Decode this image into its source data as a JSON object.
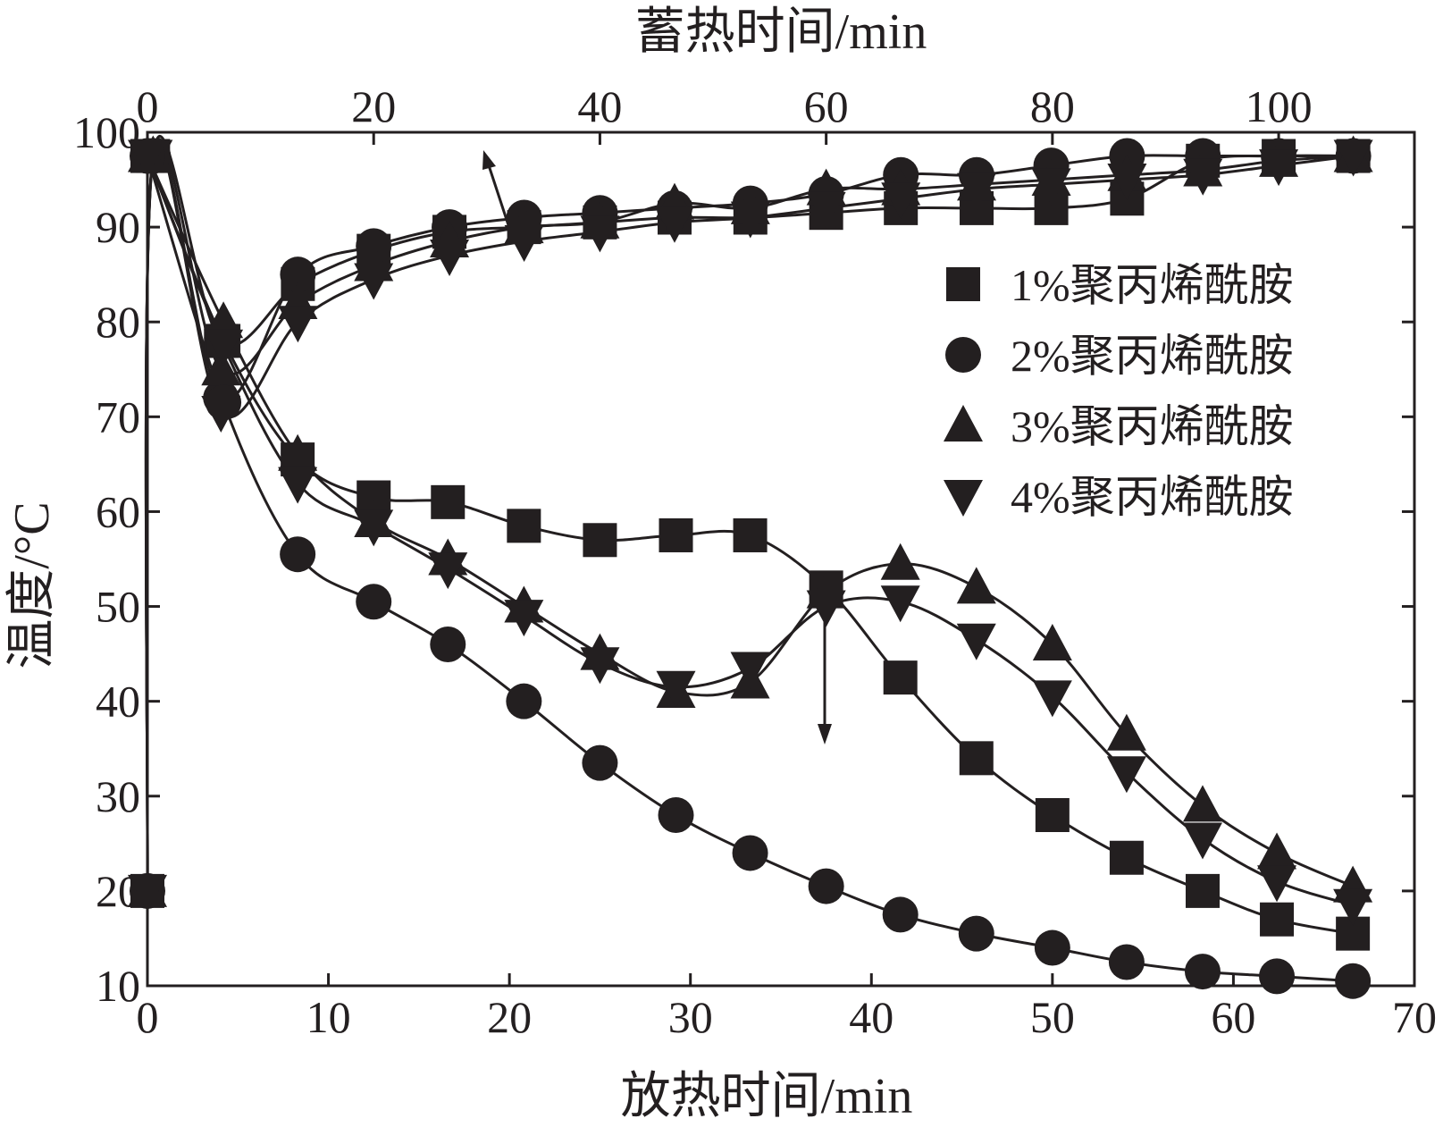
{
  "chart_data": {
    "type": "line",
    "xlabel_bottom": "放热时间/min",
    "xlabel_top": "蓄热时间/min",
    "ylabel": "温度/°C",
    "xlim_bottom": [
      0,
      70
    ],
    "xlim_top": [
      0,
      112
    ],
    "ylim": [
      10,
      100
    ],
    "xticks_bottom": [
      0,
      10,
      20,
      30,
      40,
      50,
      60,
      70
    ],
    "xticks_top": [
      0,
      20,
      40,
      60,
      80,
      100
    ],
    "yticks": [
      10,
      20,
      30,
      40,
      50,
      60,
      70,
      80,
      90,
      100
    ],
    "legend": {
      "position": "right",
      "entries": [
        {
          "label": "1%聚丙烯酰胺",
          "marker": "square"
        },
        {
          "label": "2%聚丙烯酰胺",
          "marker": "circle"
        },
        {
          "label": "3%聚丙烯酰胺",
          "marker": "triangle-up"
        },
        {
          "label": "4%聚丙烯酰胺",
          "marker": "triangle-down"
        }
      ]
    },
    "heating_series": [
      {
        "name": "1%聚丙烯酰胺",
        "marker": "square",
        "axis": "top",
        "x": [
          0,
          0.5,
          6.5,
          13.3,
          20,
          26.7,
          33.3,
          40,
          46.6,
          53.3,
          60,
          66.6,
          73.3,
          79.9,
          86.6,
          93.3,
          100,
          106.6
        ],
        "y": [
          20,
          97.5,
          78,
          84,
          87.5,
          89.5,
          90,
          90.5,
          91,
          91,
          91.5,
          92,
          92,
          92,
          93,
          97,
          97.5,
          97.5
        ]
      },
      {
        "name": "2%聚丙烯酰胺",
        "marker": "circle",
        "axis": "top",
        "x": [
          0,
          0.5,
          6.5,
          13.3,
          20,
          26.7,
          33.3,
          40,
          46.6,
          53.3,
          60,
          66.6,
          73.3,
          79.9,
          86.6,
          93.3,
          100,
          106.6
        ],
        "y": [
          20,
          97.5,
          72,
          85,
          88,
          90,
          91,
          91.5,
          92,
          92.5,
          93.5,
          95.5,
          95.5,
          96.5,
          97.5,
          97.5,
          97.5,
          97.5
        ]
      },
      {
        "name": "3%聚丙烯酰胺",
        "marker": "triangle-up",
        "axis": "top",
        "x": [
          0,
          0.5,
          6.5,
          13.3,
          20,
          26.7,
          33.3,
          40,
          46.6,
          53.3,
          60,
          66.6,
          73.3,
          79.9,
          86.6,
          93.3,
          100,
          106.6
        ],
        "y": [
          20,
          97.5,
          75,
          82,
          86,
          88.5,
          90,
          90.5,
          92.5,
          92,
          94,
          94,
          94.5,
          95,
          95.5,
          96,
          97,
          97.5
        ]
      },
      {
        "name": "4%聚丙烯酰胺",
        "marker": "triangle-down",
        "axis": "top",
        "x": [
          0,
          0.5,
          6.5,
          13.3,
          20,
          26.7,
          33.3,
          40,
          46.6,
          53.3,
          60,
          66.6,
          73.3,
          79.9,
          86.6,
          93.3,
          100,
          106.6
        ],
        "y": [
          20,
          97.5,
          70.5,
          80,
          84.5,
          87,
          88.5,
          89.5,
          90.5,
          91,
          92,
          93,
          94,
          94.5,
          95,
          95.5,
          96.5,
          97.5
        ]
      }
    ],
    "cooling_series": [
      {
        "name": "1%聚丙烯酰胺",
        "marker": "square",
        "axis": "bottom",
        "x": [
          0,
          4.2,
          8.3,
          12.5,
          16.6,
          20.8,
          25,
          29.2,
          33.3,
          37.5,
          41.6,
          45.8,
          50,
          54.1,
          58.3,
          62.4,
          66.6
        ],
        "y": [
          97.5,
          78,
          65.5,
          61.5,
          61,
          58.5,
          57,
          57.5,
          57.5,
          52,
          42.5,
          34,
          28,
          23.5,
          20,
          17,
          15.5
        ]
      },
      {
        "name": "2%聚丙烯酰胺",
        "marker": "circle",
        "axis": "bottom",
        "x": [
          0,
          4.2,
          8.3,
          12.5,
          16.6,
          20.8,
          25,
          29.2,
          33.3,
          37.5,
          41.6,
          45.8,
          50,
          54.1,
          58.3,
          62.4,
          66.6
        ],
        "y": [
          97.5,
          71.5,
          55.5,
          50.5,
          46,
          40,
          33.5,
          28,
          24,
          20.5,
          17.5,
          15.5,
          14,
          12.5,
          11.5,
          11,
          10.5
        ]
      },
      {
        "name": "3%聚丙烯酰胺",
        "marker": "triangle-up",
        "axis": "bottom",
        "x": [
          0,
          4.2,
          8.3,
          12.5,
          16.6,
          20.8,
          25,
          29.2,
          33.3,
          37.5,
          41.6,
          45.8,
          50,
          54.1,
          58.3,
          62.4,
          66.6
        ],
        "y": [
          97.5,
          80,
          66,
          59,
          55,
          50,
          45,
          41,
          42,
          51.5,
          54.5,
          52,
          46,
          36.5,
          29,
          24,
          20.5
        ]
      },
      {
        "name": "4%聚丙烯酰胺",
        "marker": "triangle-down",
        "axis": "bottom",
        "x": [
          0,
          4.2,
          8.3,
          12.5,
          16.6,
          20.8,
          25,
          29.2,
          33.3,
          37.5,
          41.6,
          45.8,
          50,
          54.1,
          58.3,
          62.4,
          66.6
        ],
        "y": [
          97.5,
          77.5,
          63,
          58.5,
          54,
          49,
          44,
          41.5,
          43.5,
          50,
          50.5,
          46.5,
          40.5,
          32.5,
          25.5,
          21,
          18.5
        ]
      }
    ]
  }
}
